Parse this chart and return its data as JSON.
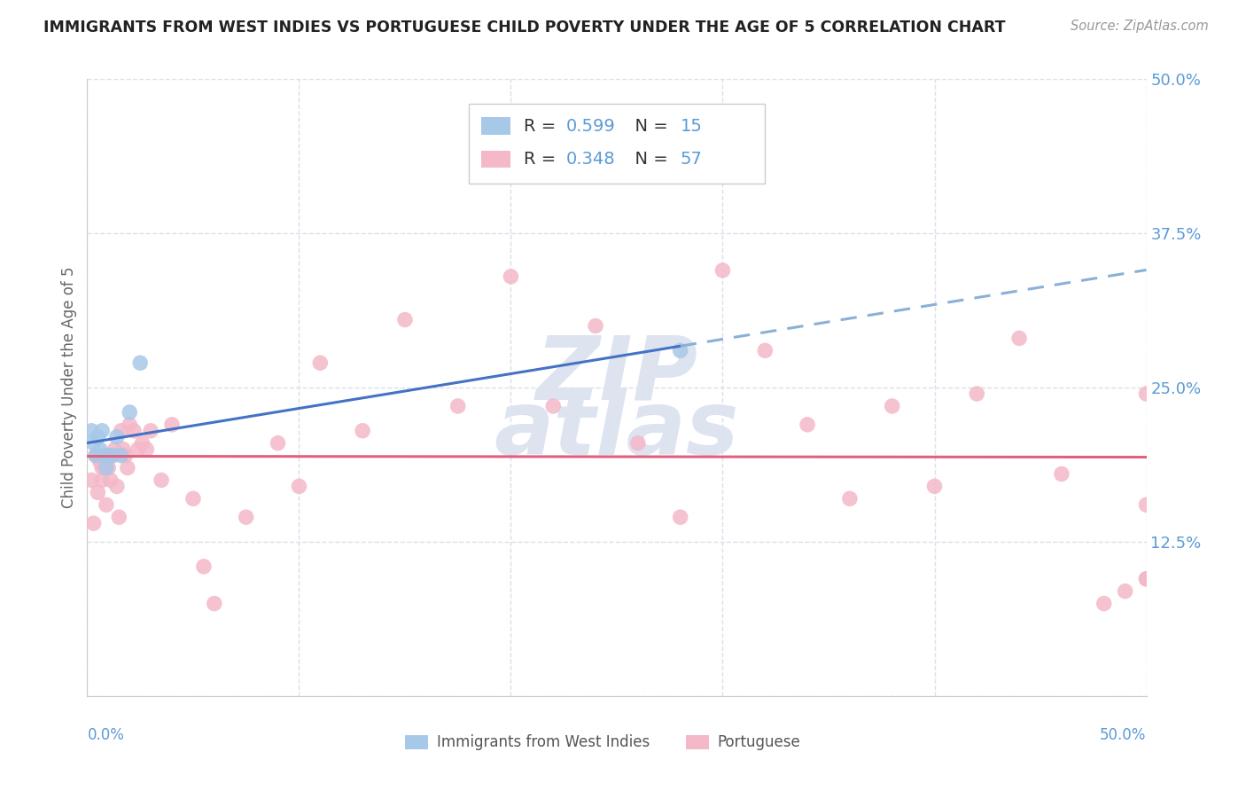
{
  "title": "IMMIGRANTS FROM WEST INDIES VS PORTUGUESE CHILD POVERTY UNDER THE AGE OF 5 CORRELATION CHART",
  "source": "Source: ZipAtlas.com",
  "ylabel": "Child Poverty Under the Age of 5",
  "r1": 0.599,
  "n1": 15,
  "r2": 0.348,
  "n2": 57,
  "xlim": [
    0.0,
    0.5
  ],
  "ylim": [
    0.0,
    0.5
  ],
  "yticks": [
    0.0,
    0.125,
    0.25,
    0.375,
    0.5
  ],
  "ytick_labels": [
    "",
    "12.5%",
    "25.0%",
    "37.5%",
    "50.0%"
  ],
  "xtick_positions": [
    0.0,
    0.1,
    0.2,
    0.3,
    0.4,
    0.5
  ],
  "blue_scatter_color": "#a8c8e8",
  "pink_scatter_color": "#f4b8c8",
  "blue_line_color": "#4472c4",
  "pink_line_color": "#e06080",
  "blue_dash_color": "#8ab0d8",
  "title_color": "#222222",
  "source_color": "#999999",
  "axis_label_color": "#5b9bd5",
  "grid_color": "#d8dce8",
  "background_color": "#ffffff",
  "legend_box_color": "#f0f0f8",
  "watermark_color": "#dde4f0",
  "west_indies_x": [
    0.002,
    0.003,
    0.004,
    0.005,
    0.006,
    0.007,
    0.008,
    0.009,
    0.01,
    0.012,
    0.014,
    0.016,
    0.02,
    0.025,
    0.28
  ],
  "west_indies_y": [
    0.215,
    0.205,
    0.195,
    0.21,
    0.2,
    0.215,
    0.195,
    0.185,
    0.195,
    0.195,
    0.21,
    0.195,
    0.23,
    0.27,
    0.28
  ],
  "portuguese_x": [
    0.002,
    0.003,
    0.004,
    0.005,
    0.006,
    0.007,
    0.007,
    0.008,
    0.009,
    0.01,
    0.011,
    0.012,
    0.013,
    0.014,
    0.015,
    0.016,
    0.017,
    0.018,
    0.019,
    0.02,
    0.022,
    0.024,
    0.026,
    0.028,
    0.03,
    0.035,
    0.04,
    0.05,
    0.055,
    0.06,
    0.075,
    0.09,
    0.1,
    0.11,
    0.13,
    0.15,
    0.175,
    0.2,
    0.22,
    0.24,
    0.26,
    0.28,
    0.3,
    0.32,
    0.34,
    0.36,
    0.38,
    0.4,
    0.42,
    0.44,
    0.46,
    0.48,
    0.49,
    0.5,
    0.5,
    0.5,
    0.5
  ],
  "portuguese_y": [
    0.175,
    0.14,
    0.195,
    0.165,
    0.19,
    0.175,
    0.185,
    0.185,
    0.155,
    0.185,
    0.175,
    0.195,
    0.2,
    0.17,
    0.145,
    0.215,
    0.2,
    0.195,
    0.185,
    0.22,
    0.215,
    0.2,
    0.205,
    0.2,
    0.215,
    0.175,
    0.22,
    0.16,
    0.105,
    0.075,
    0.145,
    0.205,
    0.17,
    0.27,
    0.215,
    0.305,
    0.235,
    0.34,
    0.235,
    0.3,
    0.205,
    0.145,
    0.345,
    0.28,
    0.22,
    0.16,
    0.235,
    0.17,
    0.245,
    0.29,
    0.18,
    0.075,
    0.085,
    0.245,
    0.095,
    0.155,
    0.095
  ]
}
